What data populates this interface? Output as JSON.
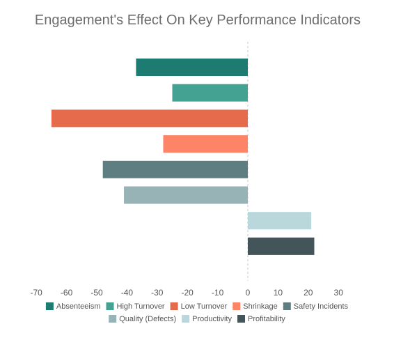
{
  "chart_data": {
    "type": "bar",
    "orientation": "horizontal",
    "title": "Engagement's Effect On Key Performance Indicators",
    "xlabel": "",
    "ylabel": "",
    "xlim": [
      -70,
      30
    ],
    "x_ticks": [
      "-70",
      "-60",
      "-50",
      "-40",
      "-30",
      "-20",
      "-10",
      "0",
      "10",
      "20",
      "30"
    ],
    "grid": false,
    "zero_line": "dashed",
    "legend_position": "bottom",
    "series": [
      {
        "name": "Absenteeism",
        "value": -37,
        "color": "#1e7b71"
      },
      {
        "name": "High Turnover",
        "value": -25,
        "color": "#44a293"
      },
      {
        "name": "Low Turnover",
        "value": -65,
        "color": "#e56b4c"
      },
      {
        "name": "Shrinkage",
        "value": -28,
        "color": "#fd8466"
      },
      {
        "name": "Safety Incidents",
        "value": -48,
        "color": "#5f7e82"
      },
      {
        "name": "Quality (Defects)",
        "value": -41,
        "color": "#97b3b6"
      },
      {
        "name": "Productivity",
        "value": 21,
        "color": "#bad8dc"
      },
      {
        "name": "Profitability",
        "value": 22,
        "color": "#44555a"
      }
    ]
  }
}
